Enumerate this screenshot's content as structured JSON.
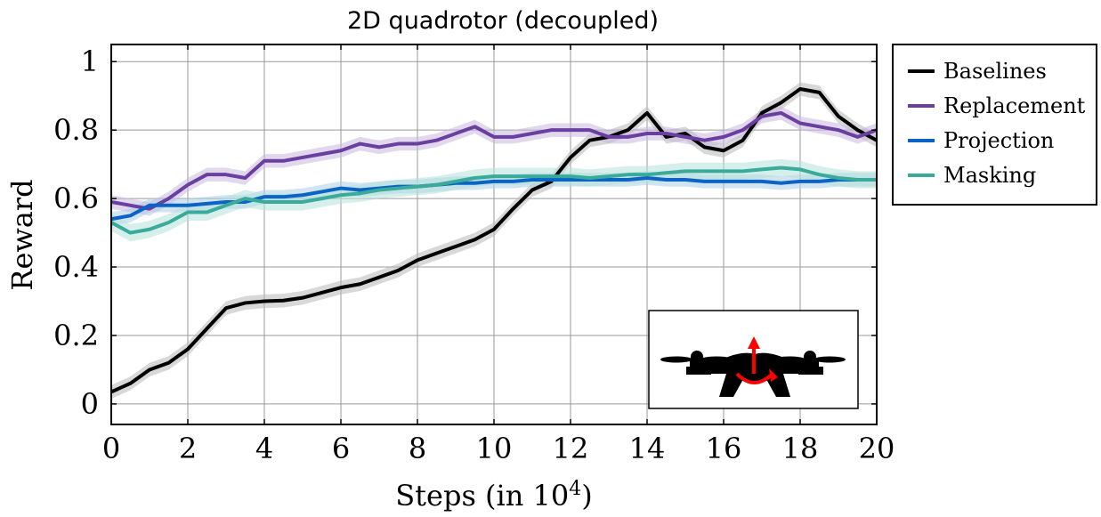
{
  "chart_data": {
    "type": "line",
    "title": "2D quadrotor (decoupled)",
    "xlabel": "Steps (in 10",
    "xlabel_superscript": "4",
    "xlabel_suffix": ")",
    "ylabel": "Reward",
    "xlim": [
      0,
      20
    ],
    "ylim": [
      -0.06,
      1.05
    ],
    "xticks": [
      0,
      2,
      4,
      6,
      8,
      10,
      12,
      14,
      16,
      18,
      20
    ],
    "yticks": [
      0,
      0.2,
      0.4,
      0.6,
      0.8,
      1
    ],
    "xtick_labels": [
      "0",
      "2",
      "4",
      "6",
      "8",
      "10",
      "12",
      "14",
      "16",
      "18",
      "20"
    ],
    "ytick_labels": [
      "0",
      "0.2",
      "0.4",
      "0.6",
      "0.8",
      "1"
    ],
    "grid": true,
    "legend_position": "outside-top-right",
    "x": [
      0,
      0.5,
      1,
      1.5,
      2,
      2.5,
      3,
      3.5,
      4,
      4.5,
      5,
      5.5,
      6,
      6.5,
      7,
      7.5,
      8,
      8.5,
      9,
      9.5,
      10,
      10.5,
      11,
      11.5,
      12,
      12.5,
      13,
      13.5,
      14,
      14.5,
      15,
      15.5,
      16,
      16.5,
      17,
      17.5,
      18,
      18.5,
      19,
      19.5,
      20
    ],
    "series": [
      {
        "name": "Baselines",
        "color": "#000000",
        "band_color": "#b8b8b8",
        "values": [
          0.035,
          0.06,
          0.1,
          0.12,
          0.16,
          0.22,
          0.28,
          0.295,
          0.3,
          0.302,
          0.31,
          0.325,
          0.34,
          0.35,
          0.37,
          0.39,
          0.42,
          0.44,
          0.46,
          0.48,
          0.51,
          0.57,
          0.625,
          0.65,
          0.72,
          0.77,
          0.78,
          0.8,
          0.85,
          0.78,
          0.79,
          0.75,
          0.74,
          0.77,
          0.85,
          0.88,
          0.92,
          0.91,
          0.84,
          0.8,
          0.77
        ],
        "band": 0.02
      },
      {
        "name": "Replacement",
        "color": "#6a3fa0",
        "band_color": "#c9b8e0",
        "values": [
          0.59,
          0.58,
          0.57,
          0.6,
          0.64,
          0.67,
          0.67,
          0.66,
          0.71,
          0.71,
          0.72,
          0.73,
          0.74,
          0.76,
          0.75,
          0.76,
          0.76,
          0.77,
          0.79,
          0.81,
          0.78,
          0.78,
          0.79,
          0.8,
          0.8,
          0.8,
          0.78,
          0.78,
          0.79,
          0.79,
          0.78,
          0.77,
          0.78,
          0.8,
          0.84,
          0.85,
          0.82,
          0.81,
          0.8,
          0.78,
          0.8
        ],
        "band": 0.02
      },
      {
        "name": "Projection",
        "color": "#0b63c4",
        "band_color": "#a9cde8",
        "values": [
          0.54,
          0.55,
          0.58,
          0.58,
          0.58,
          0.585,
          0.59,
          0.59,
          0.605,
          0.605,
          0.61,
          0.62,
          0.63,
          0.625,
          0.63,
          0.635,
          0.635,
          0.64,
          0.645,
          0.645,
          0.65,
          0.65,
          0.655,
          0.655,
          0.655,
          0.655,
          0.655,
          0.655,
          0.66,
          0.655,
          0.655,
          0.65,
          0.65,
          0.65,
          0.65,
          0.645,
          0.65,
          0.65,
          0.655,
          0.655,
          0.655
        ],
        "band": 0.02
      },
      {
        "name": "Masking",
        "color": "#3aab9a",
        "band_color": "#b4e2da",
        "values": [
          0.53,
          0.5,
          0.51,
          0.53,
          0.56,
          0.56,
          0.58,
          0.6,
          0.59,
          0.59,
          0.59,
          0.6,
          0.61,
          0.615,
          0.625,
          0.63,
          0.635,
          0.64,
          0.65,
          0.66,
          0.665,
          0.665,
          0.665,
          0.665,
          0.665,
          0.66,
          0.665,
          0.67,
          0.67,
          0.675,
          0.68,
          0.68,
          0.68,
          0.68,
          0.685,
          0.69,
          0.685,
          0.67,
          0.66,
          0.655,
          0.655
        ],
        "band": 0.025
      }
    ],
    "inset": {
      "description_icon": "quadrotor-icon",
      "arrow_color": "#ff0000"
    }
  }
}
